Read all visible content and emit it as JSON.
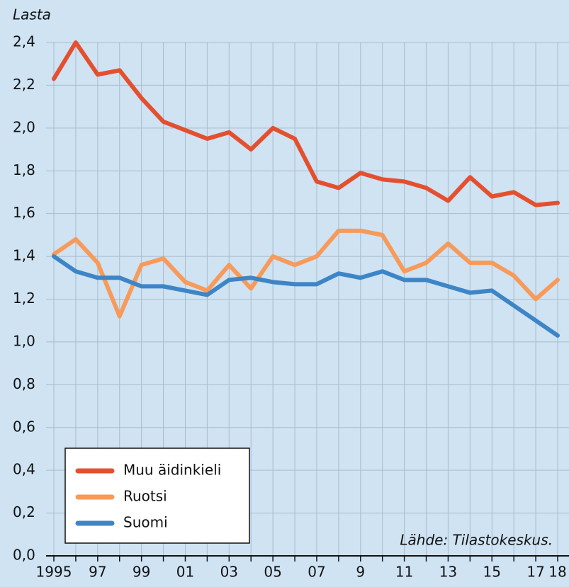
{
  "chart_data": {
    "type": "line",
    "y_label": "Lasta",
    "source": "Lähde: Tilastokeskus.",
    "categories": [
      "1995",
      null,
      "97",
      null,
      "99",
      null,
      "01",
      null,
      "03",
      null,
      "05",
      null,
      "07",
      null,
      "9",
      null,
      "11",
      null,
      "13",
      null,
      "15",
      null,
      "17",
      "18"
    ],
    "series": [
      {
        "name": "Muu äidinkieli",
        "color": "#e4502f",
        "values": [
          2.23,
          2.4,
          2.25,
          2.27,
          2.14,
          2.03,
          1.99,
          1.95,
          1.98,
          1.9,
          2.0,
          1.95,
          1.75,
          1.72,
          1.79,
          1.76,
          1.75,
          1.72,
          1.66,
          1.77,
          1.68,
          1.7,
          1.64,
          1.65
        ]
      },
      {
        "name": "Ruotsi",
        "color": "#f79a5a",
        "values": [
          1.41,
          1.48,
          1.37,
          1.12,
          1.36,
          1.39,
          1.28,
          1.24,
          1.36,
          1.25,
          1.4,
          1.36,
          1.4,
          1.52,
          1.52,
          1.5,
          1.33,
          1.37,
          1.46,
          1.37,
          1.37,
          1.31,
          1.2,
          1.29
        ]
      },
      {
        "name": "Suomi",
        "color": "#3d85c6",
        "values": [
          1.4,
          1.33,
          1.3,
          1.3,
          1.26,
          1.26,
          1.24,
          1.22,
          1.29,
          1.3,
          1.28,
          1.27,
          1.27,
          1.32,
          1.3,
          1.33,
          1.29,
          1.29,
          1.26,
          1.23,
          1.24,
          1.17,
          1.1,
          1.03
        ]
      }
    ],
    "ylim": [
      0,
      2.4
    ],
    "yticks": [
      {
        "value": 0,
        "label": "0,0"
      },
      {
        "value": 0.2,
        "label": "0,2"
      },
      {
        "value": 0.4,
        "label": "0,4"
      },
      {
        "value": 0.6,
        "label": "0,6"
      },
      {
        "value": 0.8,
        "label": "0,8"
      },
      {
        "value": 1.0,
        "label": "1,0"
      },
      {
        "value": 1.2,
        "label": "1,2"
      },
      {
        "value": 1.4,
        "label": "1,4"
      },
      {
        "value": 1.6,
        "label": "1,6"
      },
      {
        "value": 1.8,
        "label": "1,8"
      },
      {
        "value": 2.0,
        "label": "2,0"
      },
      {
        "value": 2.2,
        "label": "2,2"
      },
      {
        "value": 2.4,
        "label": "2,4"
      }
    ],
    "grid": true,
    "legend": "lower left"
  }
}
